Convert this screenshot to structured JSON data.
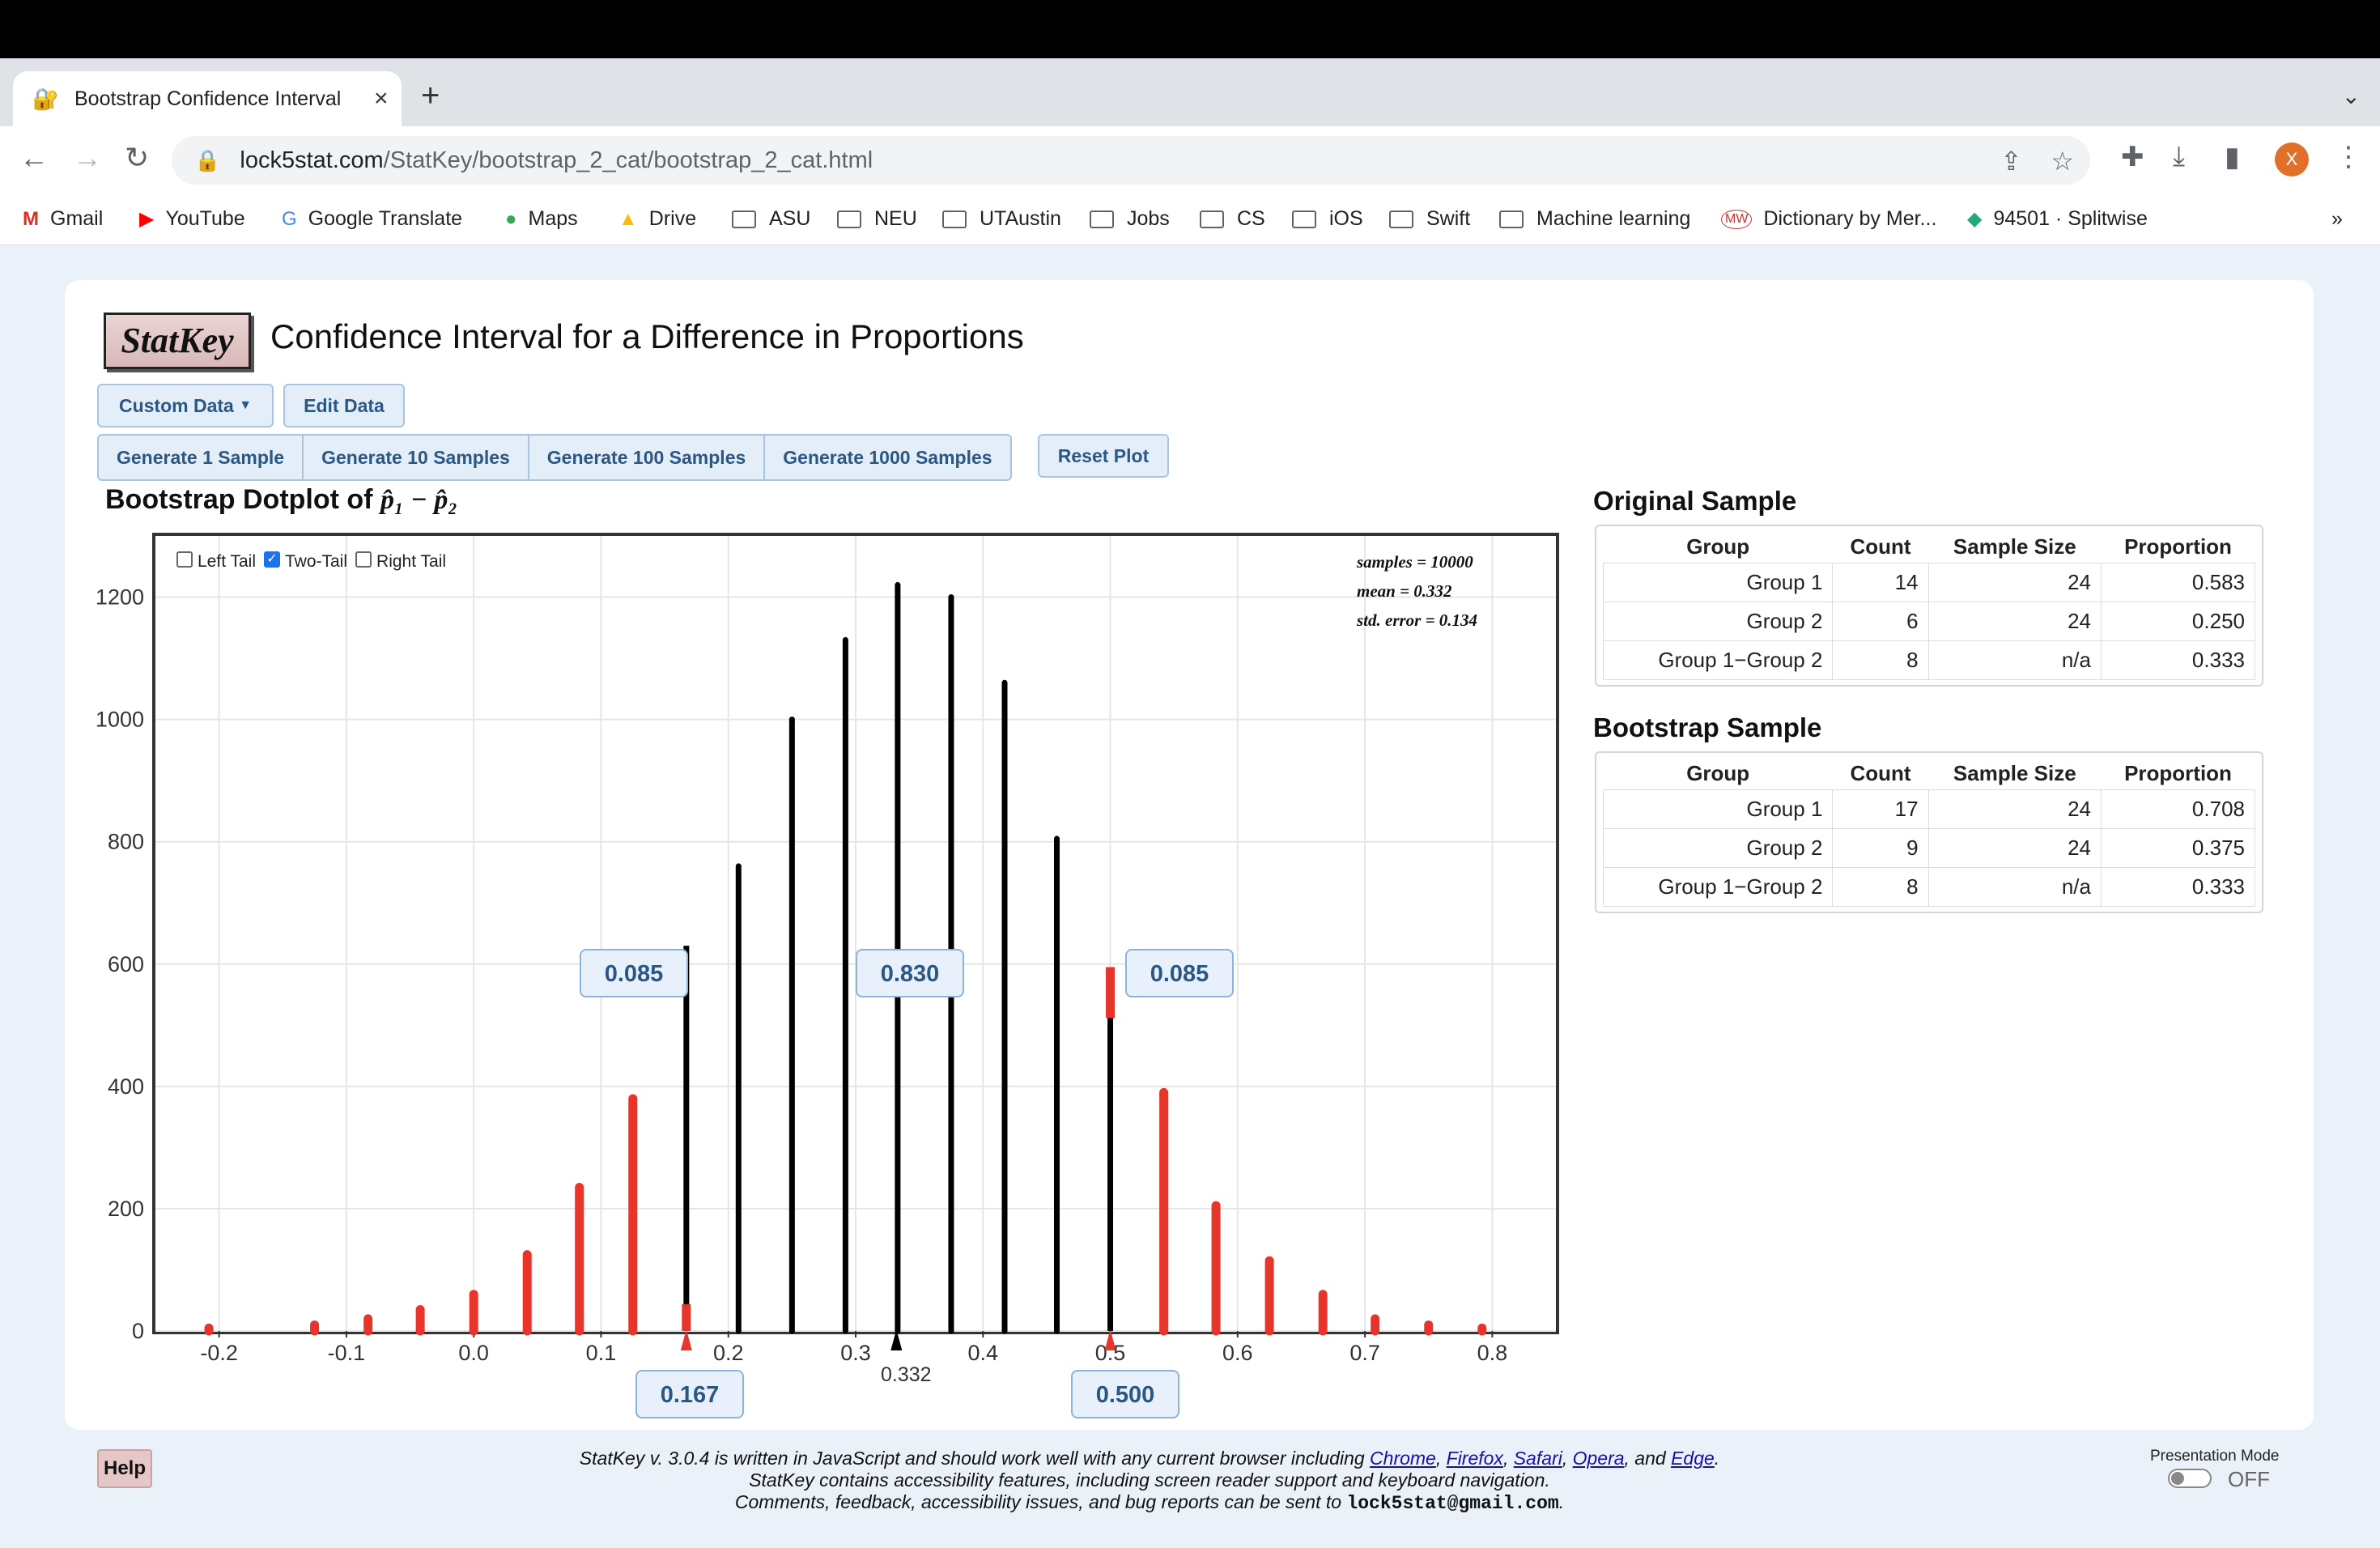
{
  "browser": {
    "tab_title": "Bootstrap Confidence Interval",
    "url_domain": "lock5stat.com",
    "url_path": "/StatKey/bootstrap_2_cat/bootstrap_2_cat.html",
    "profile_initial": "X",
    "bookmarks": [
      "Gmail",
      "YouTube",
      "Google Translate",
      "Maps",
      "Drive",
      "ASU",
      "NEU",
      "UTAustin",
      "Jobs",
      "CS",
      "iOS",
      "Swift",
      "Machine learning",
      "Dictionary by Mer...",
      "94501 · Splitwise"
    ]
  },
  "app": {
    "logo": "StatKey",
    "title": "Confidence Interval for a Difference in Proportions",
    "custom_data": "Custom Data",
    "edit_data": "Edit Data",
    "generate": [
      "Generate 1 Sample",
      "Generate 10 Samples",
      "Generate 100 Samples",
      "Generate 1000 Samples"
    ],
    "reset": "Reset Plot"
  },
  "plot": {
    "title_prefix": "Bootstrap Dotplot of",
    "title_math": "p̂₁ − p̂₂",
    "tails": {
      "left": "Left Tail",
      "two": "Two-Tail",
      "right": "Right Tail",
      "two_checked": true
    },
    "stats": {
      "samples": "samples = 10000",
      "mean": "mean = 0.332",
      "se": "std. error = 0.134"
    },
    "left_prop": "0.085",
    "middle_prop": "0.830",
    "right_prop": "0.085",
    "lower_bound": "0.167",
    "upper_bound": "0.500",
    "mean_label": "0.332"
  },
  "chart_data": {
    "type": "bar",
    "title": "Bootstrap Dotplot of p̂₁ − p̂₂",
    "x_ticks": [
      "-0.2",
      "-0.1",
      "0.0",
      "0.1",
      "0.2",
      "0.3",
      "0.4",
      "0.5",
      "0.6",
      "0.7",
      "0.8"
    ],
    "y_ticks": [
      "0",
      "200",
      "400",
      "600",
      "800",
      "1000",
      "1200"
    ],
    "xlim": [
      -0.25,
      0.85
    ],
    "ylim": [
      0,
      1300
    ],
    "x": [
      -0.208,
      -0.125,
      -0.083,
      -0.042,
      0.0,
      0.042,
      0.083,
      0.125,
      0.167,
      0.208,
      0.25,
      0.292,
      0.333,
      0.375,
      0.417,
      0.458,
      0.5,
      0.542,
      0.583,
      0.625,
      0.667,
      0.708,
      0.75,
      0.792
    ],
    "values": [
      5,
      10,
      20,
      35,
      60,
      125,
      235,
      380,
      630,
      760,
      1000,
      1130,
      1220,
      1200,
      1060,
      805,
      595,
      390,
      205,
      115,
      60,
      20,
      10,
      5
    ],
    "tail_color": "#e8352b",
    "body_color": "#000000",
    "lower": 0.167,
    "upper": 0.5
  },
  "original": {
    "title": "Original Sample",
    "headers": [
      "Group",
      "Count",
      "Sample Size",
      "Proportion"
    ],
    "rows": [
      [
        "Group 1",
        "14",
        "24",
        "0.583"
      ],
      [
        "Group 2",
        "6",
        "24",
        "0.250"
      ],
      [
        "Group 1−Group 2",
        "8",
        "n/a",
        "0.333"
      ]
    ]
  },
  "bootstrap": {
    "title": "Bootstrap Sample",
    "headers": [
      "Group",
      "Count",
      "Sample Size",
      "Proportion"
    ],
    "rows": [
      [
        "Group 1",
        "17",
        "24",
        "0.708"
      ],
      [
        "Group 2",
        "9",
        "24",
        "0.375"
      ],
      [
        "Group 1−Group 2",
        "8",
        "n/a",
        "0.333"
      ]
    ]
  },
  "footer": {
    "help": "Help",
    "line1_a": "StatKey v. 3.0.4 is written in JavaScript and should work well with any current browser including ",
    "chrome": "Chrome",
    "firefox": "Firefox",
    "safari": "Safari",
    "opera": "Opera",
    "edge": "Edge",
    "line2": "StatKey contains accessibility features, including screen reader support and keyboard navigation.",
    "line3": "Comments, feedback, accessibility issues, and bug reports can be sent to ",
    "email": "lock5stat@gmail.com",
    "presentation_mode": "Presentation Mode",
    "presentation_state": "OFF"
  }
}
